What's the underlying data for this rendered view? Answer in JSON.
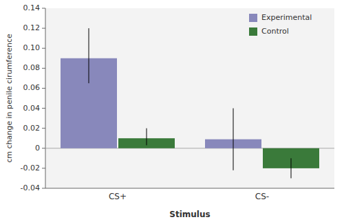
{
  "chart_data": {
    "type": "bar",
    "categories": [
      "CS+",
      "CS-"
    ],
    "series": [
      {
        "name": "Experimental",
        "color": "#8888BB",
        "values": [
          0.09,
          0.009
        ],
        "errors_neg": [
          0.025,
          0.031
        ],
        "errors_pos": [
          0.03,
          0.031
        ]
      },
      {
        "name": "Control",
        "color": "#3a7a3a",
        "values": [
          0.01,
          -0.02
        ],
        "errors_neg": [
          0.007,
          0.01
        ],
        "errors_pos": [
          0.01,
          0.01
        ]
      }
    ],
    "xlabel": "Stimulus",
    "ylabel": "cm change in penile cirumference",
    "ylim": [
      -0.04,
      0.14
    ],
    "yticks": [
      -0.04,
      -0.02,
      0,
      0.02,
      0.04,
      0.06,
      0.08,
      {
        "value": 0.1,
        "label": "0.10"
      },
      0.12,
      0.14
    ],
    "legend": "upper right",
    "grid": false
  }
}
